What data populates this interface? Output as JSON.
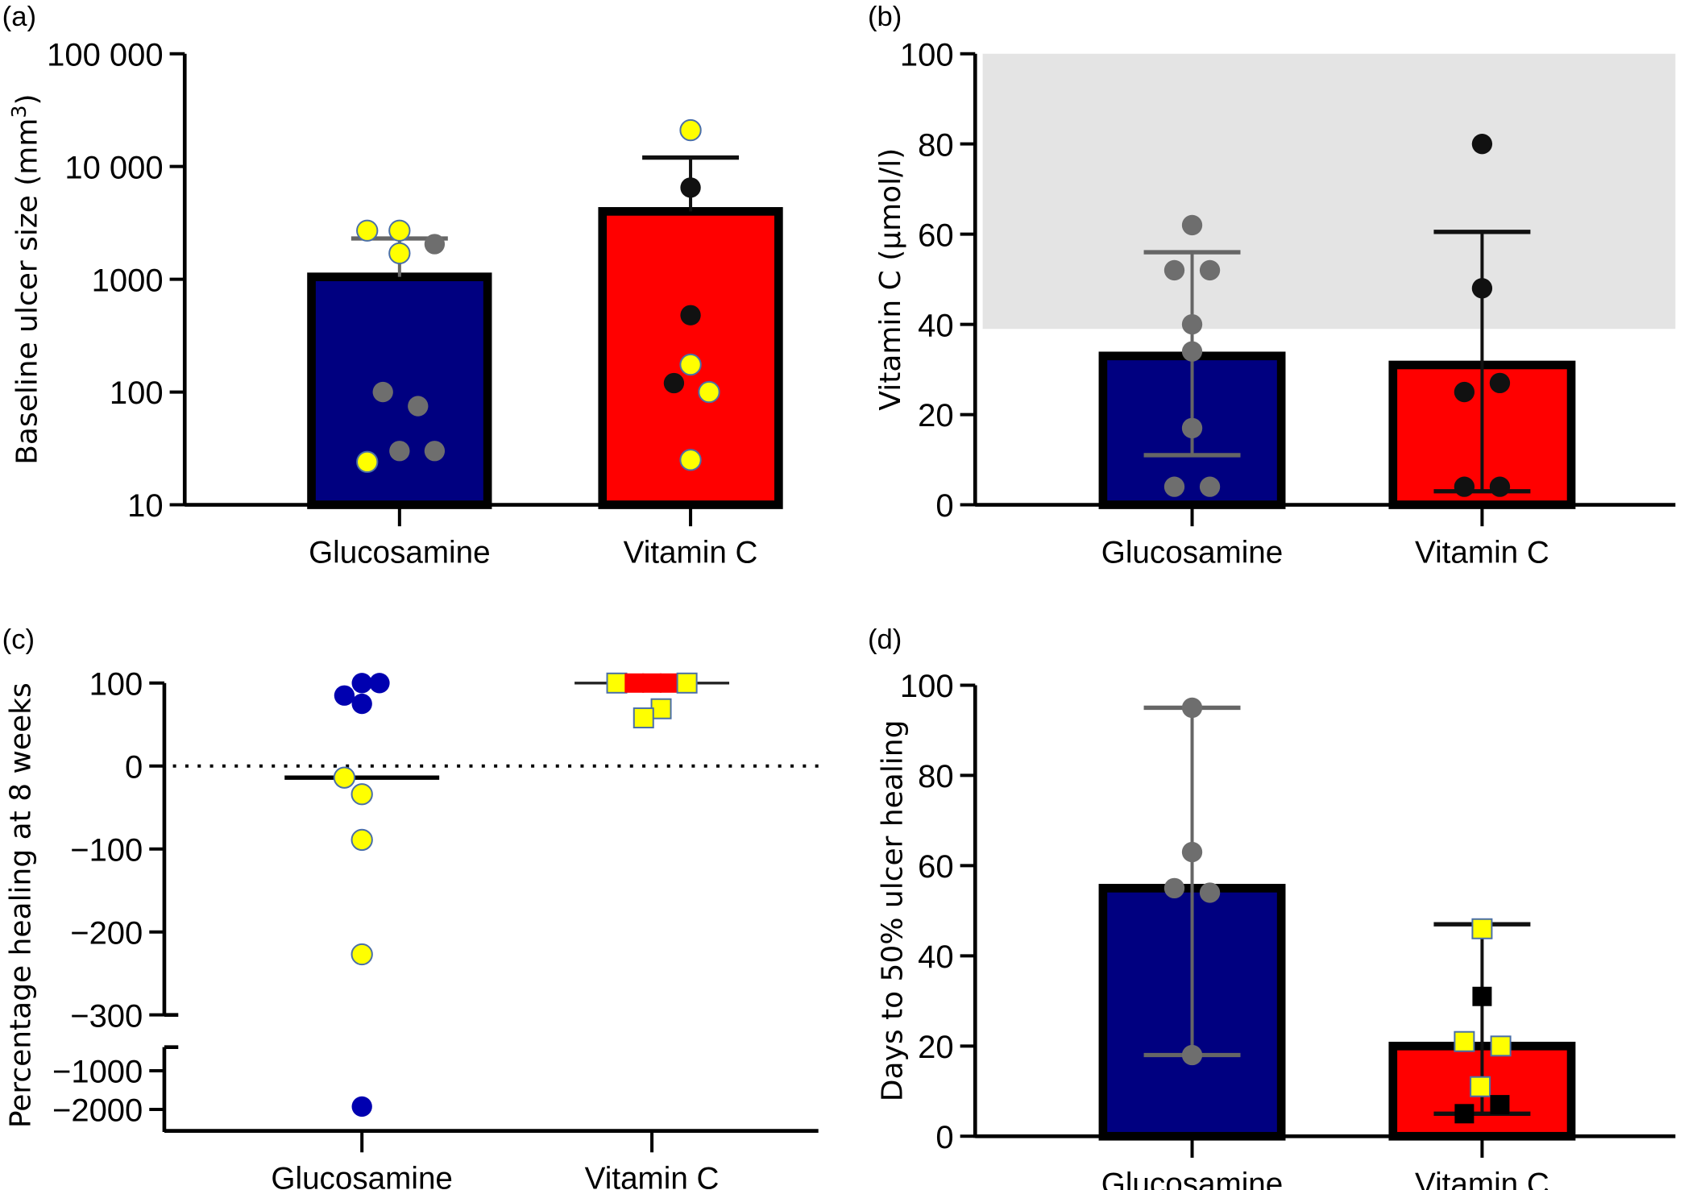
{
  "chart_data": [
    {
      "id": "a",
      "panel_label": "(a)",
      "type": "bar",
      "yscale": "log",
      "ylabel": "Baseline ulcer size (mm",
      "ylabel_sup": "3",
      "ylabel_end": ")",
      "ylim": [
        10,
        100000
      ],
      "yticks": [
        10,
        100,
        1000,
        10000,
        100000
      ],
      "ytick_labels": [
        "10",
        "100",
        "1000",
        "10 000",
        "100 000"
      ],
      "categories": [
        "Glucosamine",
        "Vitamin C"
      ],
      "bar_colors": [
        "#000080",
        "#ff0000"
      ],
      "values": [
        1050,
        4000
      ],
      "error_type": "sd_upper",
      "error_upper": [
        2300,
        12000
      ],
      "points": [
        [
          {
            "v": 2700,
            "dx": -0.35,
            "color": "#ffff00",
            "shape": "circle"
          },
          {
            "v": 2700,
            "dx": 0.0,
            "color": "#ffff00",
            "shape": "circle"
          },
          {
            "v": 2050,
            "dx": 0.38,
            "color": "#6e6e6e",
            "shape": "circle"
          },
          {
            "v": 1700,
            "dx": 0.0,
            "color": "#ffff00",
            "shape": "circle"
          },
          {
            "v": 100,
            "dx": -0.18,
            "color": "#6e6e6e",
            "shape": "circle"
          },
          {
            "v": 75,
            "dx": 0.2,
            "color": "#6e6e6e",
            "shape": "circle"
          },
          {
            "v": 30,
            "dx": 0.0,
            "color": "#6e6e6e",
            "shape": "circle"
          },
          {
            "v": 30,
            "dx": 0.38,
            "color": "#6e6e6e",
            "shape": "circle"
          },
          {
            "v": 24,
            "dx": -0.35,
            "color": "#ffff00",
            "shape": "circle"
          }
        ],
        [
          {
            "v": 21000,
            "dx": 0.0,
            "color": "#ffff00",
            "shape": "circle"
          },
          {
            "v": 6500,
            "dx": 0.0,
            "color": "#111111",
            "shape": "circle"
          },
          {
            "v": 480,
            "dx": 0.0,
            "color": "#111111",
            "shape": "circle"
          },
          {
            "v": 175,
            "dx": 0.0,
            "color": "#ffff00",
            "shape": "circle"
          },
          {
            "v": 120,
            "dx": -0.18,
            "color": "#111111",
            "shape": "circle"
          },
          {
            "v": 100,
            "dx": 0.2,
            "color": "#ffff00",
            "shape": "circle"
          },
          {
            "v": 25,
            "dx": 0.0,
            "color": "#ffff00",
            "shape": "circle"
          }
        ]
      ]
    },
    {
      "id": "b",
      "panel_label": "(b)",
      "type": "bar",
      "yscale": "linear",
      "ylabel": "Vitamin C  (µmol/l)",
      "ylim": [
        0,
        100
      ],
      "yticks": [
        0,
        20,
        40,
        60,
        80,
        100
      ],
      "ytick_labels": [
        "0",
        "20",
        "40",
        "60",
        "80",
        "100"
      ],
      "reference_band": [
        39,
        100
      ],
      "categories": [
        "Glucosamine",
        "Vitamin C"
      ],
      "bar_colors": [
        "#000080",
        "#ff0000"
      ],
      "values": [
        33,
        31
      ],
      "error_type": "sd",
      "error_lower": [
        11,
        3
      ],
      "error_upper": [
        56,
        60.5
      ],
      "points": [
        [
          {
            "v": 62,
            "dx": 0.0,
            "color": "#6e6e6e",
            "shape": "circle"
          },
          {
            "v": 52,
            "dx": -0.19,
            "color": "#6e6e6e",
            "shape": "circle"
          },
          {
            "v": 52,
            "dx": 0.19,
            "color": "#6e6e6e",
            "shape": "circle"
          },
          {
            "v": 40,
            "dx": 0.0,
            "color": "#6e6e6e",
            "shape": "circle"
          },
          {
            "v": 34,
            "dx": 0.0,
            "color": "#6e6e6e",
            "shape": "circle"
          },
          {
            "v": 17,
            "dx": 0.0,
            "color": "#6e6e6e",
            "shape": "circle"
          },
          {
            "v": 4,
            "dx": -0.19,
            "color": "#6e6e6e",
            "shape": "circle"
          },
          {
            "v": 4,
            "dx": 0.19,
            "color": "#6e6e6e",
            "shape": "circle"
          }
        ],
        [
          {
            "v": 80,
            "dx": 0.0,
            "color": "#111111",
            "shape": "circle"
          },
          {
            "v": 48,
            "dx": 0.0,
            "color": "#111111",
            "shape": "circle"
          },
          {
            "v": 27,
            "dx": 0.19,
            "color": "#111111",
            "shape": "circle"
          },
          {
            "v": 25,
            "dx": -0.19,
            "color": "#111111",
            "shape": "circle"
          },
          {
            "v": 4,
            "dx": -0.19,
            "color": "#111111",
            "shape": "circle"
          },
          {
            "v": 4,
            "dx": 0.19,
            "color": "#111111",
            "shape": "circle"
          }
        ]
      ]
    },
    {
      "id": "c",
      "panel_label": "(c)",
      "type": "scatter",
      "yscale": "broken",
      "ylabel": "Percentage healing at 8 weeks",
      "ylim_upper": [
        -300,
        100
      ],
      "ylim_lower": [
        -2500,
        -700
      ],
      "yticks": [
        100,
        0,
        -100,
        -200,
        -300,
        -1000,
        -2000
      ],
      "ytick_labels": [
        "100",
        "0",
        "−100",
        "−200",
        "−300",
        "−1000",
        "−2000"
      ],
      "reference_line": 0,
      "categories": [
        "Glucosamine",
        "Vitamin C"
      ],
      "medians": [
        -14,
        100
      ],
      "points": [
        [
          {
            "v": 100,
            "dx": 0.0,
            "color": "#0000b0",
            "shape": "circle"
          },
          {
            "v": 100,
            "dx": 0.19,
            "color": "#0000b0",
            "shape": "circle"
          },
          {
            "v": 85,
            "dx": -0.19,
            "color": "#0000b0",
            "shape": "circle"
          },
          {
            "v": 75,
            "dx": 0.0,
            "color": "#0000b0",
            "shape": "circle"
          },
          {
            "v": -14,
            "dx": -0.19,
            "color": "#ffff00",
            "shape": "circle"
          },
          {
            "v": -34,
            "dx": 0.0,
            "color": "#ffff00",
            "shape": "circle"
          },
          {
            "v": -89,
            "dx": 0.0,
            "color": "#ffff00",
            "shape": "circle"
          },
          {
            "v": -227,
            "dx": 0.0,
            "color": "#ffff00",
            "shape": "circle"
          },
          {
            "v": -1900,
            "dx": 0.0,
            "color": "#0000b0",
            "shape": "circle"
          }
        ],
        [
          {
            "v": 100,
            "dx": -0.38,
            "color": "#ffff00",
            "shape": "square"
          },
          {
            "v": 100,
            "dx": -0.19,
            "color": "#ff0000",
            "shape": "square"
          },
          {
            "v": 100,
            "dx": 0.0,
            "color": "#ff0000",
            "shape": "square"
          },
          {
            "v": 100,
            "dx": 0.19,
            "color": "#ff0000",
            "shape": "square"
          },
          {
            "v": 100,
            "dx": 0.38,
            "color": "#ffff00",
            "shape": "square"
          },
          {
            "v": 69,
            "dx": 0.1,
            "color": "#ffff00",
            "shape": "square"
          },
          {
            "v": 58,
            "dx": -0.09,
            "color": "#ffff00",
            "shape": "square"
          }
        ]
      ]
    },
    {
      "id": "d",
      "panel_label": "(d)",
      "type": "bar",
      "yscale": "linear",
      "ylabel": "Days to 50% ulcer healing",
      "ylim": [
        0,
        100
      ],
      "yticks": [
        0,
        20,
        40,
        60,
        80,
        100
      ],
      "ytick_labels": [
        "0",
        "20",
        "40",
        "60",
        "80",
        "100"
      ],
      "categories": [
        "Glucosamine",
        "Vitamin C"
      ],
      "bar_colors": [
        "#000080",
        "#ff0000"
      ],
      "values": [
        55,
        20
      ],
      "error_type": "range",
      "error_lower": [
        18,
        5
      ],
      "error_upper": [
        95,
        47
      ],
      "points": [
        [
          {
            "v": 95,
            "dx": 0.0,
            "color": "#6e6e6e",
            "shape": "circle"
          },
          {
            "v": 63,
            "dx": 0.0,
            "color": "#6e6e6e",
            "shape": "circle"
          },
          {
            "v": 55,
            "dx": -0.19,
            "color": "#6e6e6e",
            "shape": "circle"
          },
          {
            "v": 54,
            "dx": 0.19,
            "color": "#6e6e6e",
            "shape": "circle"
          },
          {
            "v": 18,
            "dx": 0.0,
            "color": "#6e6e6e",
            "shape": "circle"
          }
        ],
        [
          {
            "v": 46,
            "dx": 0.0,
            "color": "#ffff00",
            "shape": "square"
          },
          {
            "v": 31,
            "dx": 0.0,
            "color": "#000000",
            "shape": "square"
          },
          {
            "v": 21,
            "dx": -0.19,
            "color": "#ffff00",
            "shape": "square"
          },
          {
            "v": 20,
            "dx": 0.2,
            "color": "#ffff00",
            "shape": "square"
          },
          {
            "v": 11,
            "dx": -0.02,
            "color": "#ffff00",
            "shape": "square"
          },
          {
            "v": 7,
            "dx": 0.19,
            "color": "#000000",
            "shape": "square"
          },
          {
            "v": 5,
            "dx": -0.19,
            "color": "#000000",
            "shape": "square"
          }
        ]
      ]
    }
  ]
}
